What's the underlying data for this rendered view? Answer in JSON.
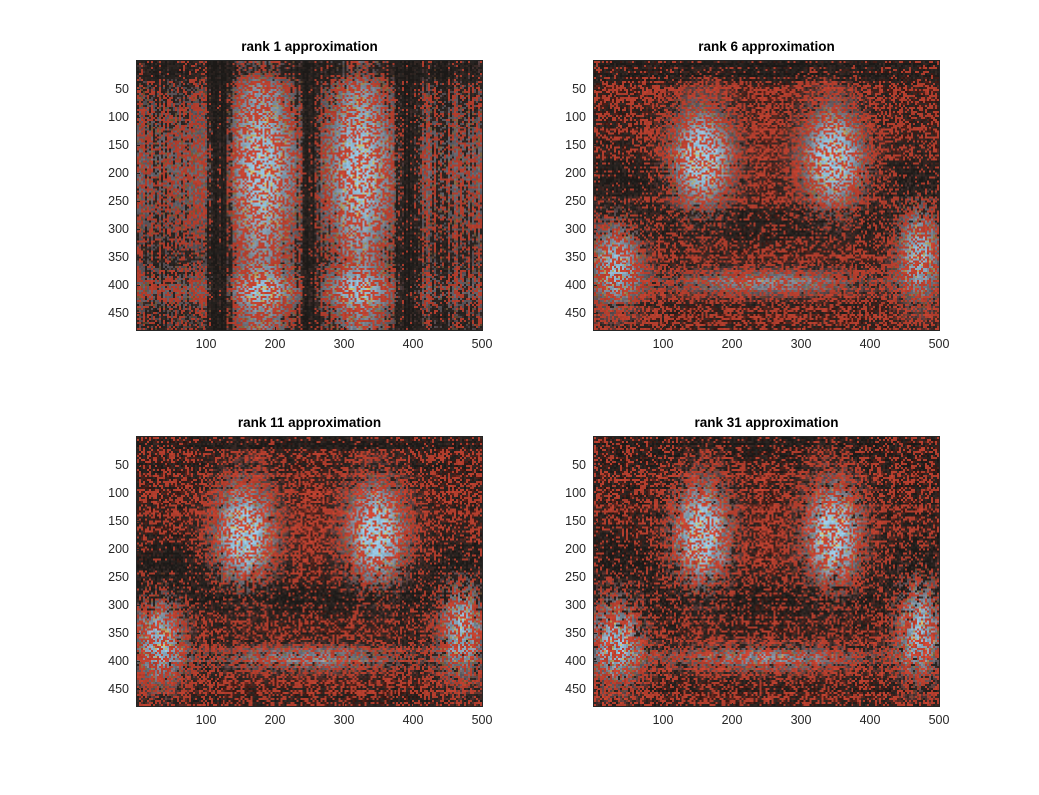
{
  "figure": {
    "background": "#ffffff"
  },
  "chart_data": [
    {
      "type": "heatmap",
      "title": "rank 1 approximation",
      "rank": 1,
      "xlim": [
        0,
        500
      ],
      "ylim": [
        0,
        480
      ],
      "y_direction": "reversed",
      "x_ticks": [
        100,
        200,
        300,
        400,
        500
      ],
      "y_ticks": [
        50,
        100,
        150,
        200,
        250,
        300,
        350,
        400,
        450
      ],
      "x_tick_labels": [
        "100",
        "200",
        "300",
        "400",
        "500"
      ],
      "y_tick_labels": [
        "50",
        "100",
        "150",
        "200",
        "250",
        "300",
        "350",
        "400",
        "450"
      ],
      "xlabel": "",
      "ylabel": "",
      "grid": false
    },
    {
      "type": "heatmap",
      "title": "rank 6 approximation",
      "rank": 6,
      "xlim": [
        0,
        500
      ],
      "ylim": [
        0,
        480
      ],
      "y_direction": "reversed",
      "x_ticks": [
        100,
        200,
        300,
        400,
        500
      ],
      "y_ticks": [
        50,
        100,
        150,
        200,
        250,
        300,
        350,
        400,
        450
      ],
      "x_tick_labels": [
        "100",
        "200",
        "300",
        "400",
        "500"
      ],
      "y_tick_labels": [
        "50",
        "100",
        "150",
        "200",
        "250",
        "300",
        "350",
        "400",
        "450"
      ],
      "xlabel": "",
      "ylabel": "",
      "grid": false
    },
    {
      "type": "heatmap",
      "title": "rank 11 approximation",
      "rank": 11,
      "xlim": [
        0,
        500
      ],
      "ylim": [
        0,
        480
      ],
      "y_direction": "reversed",
      "x_ticks": [
        100,
        200,
        300,
        400,
        500
      ],
      "y_ticks": [
        50,
        100,
        150,
        200,
        250,
        300,
        350,
        400,
        450
      ],
      "x_tick_labels": [
        "100",
        "200",
        "300",
        "400",
        "500"
      ],
      "y_tick_labels": [
        "50",
        "100",
        "150",
        "200",
        "250",
        "300",
        "350",
        "400",
        "450"
      ],
      "xlabel": "",
      "ylabel": "",
      "grid": false
    },
    {
      "type": "heatmap",
      "title": "rank 31 approximation",
      "rank": 31,
      "xlim": [
        0,
        500
      ],
      "ylim": [
        0,
        480
      ],
      "y_direction": "reversed",
      "x_ticks": [
        100,
        200,
        300,
        400,
        500
      ],
      "y_ticks": [
        50,
        100,
        150,
        200,
        250,
        300,
        350,
        400,
        450
      ],
      "x_tick_labels": [
        "100",
        "200",
        "300",
        "400",
        "500"
      ],
      "y_tick_labels": [
        "50",
        "100",
        "150",
        "200",
        "250",
        "300",
        "350",
        "400",
        "450"
      ],
      "xlabel": "",
      "ylabel": "",
      "grid": false
    }
  ],
  "colors": {
    "red": "#c2402e",
    "light_blue": "#8ab8d3",
    "dark": "#2e2a27",
    "yellow": "#b9b46a",
    "axis": "#262626"
  }
}
